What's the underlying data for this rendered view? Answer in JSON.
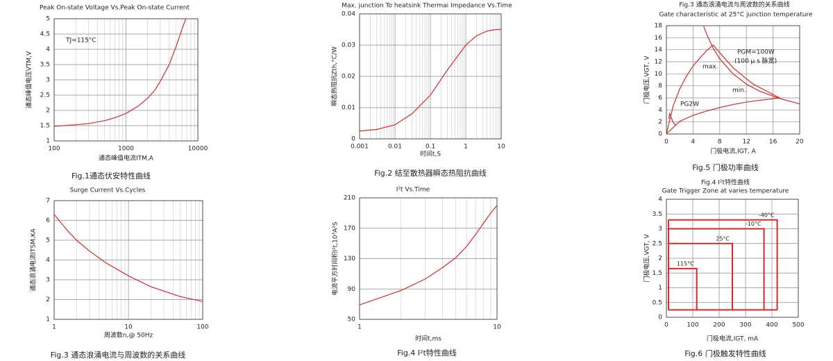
{
  "chart_data": [
    {
      "type": "line",
      "title": "Peak On-state Voltage Vs.Peak On-state Current",
      "caption": "Fig.1通态伏安特性曲线",
      "xlabel": "通态峰值电流ITM,A",
      "ylabel": "通态峰值电压VTM,V",
      "annotations": [
        "TJ=115°C"
      ],
      "xscale": "log",
      "xlim": [
        100,
        10000
      ],
      "xticks": [
        100,
        1000,
        10000
      ],
      "ylim": [
        1,
        5
      ],
      "yticks": [
        1,
        1.5,
        2,
        2.5,
        3,
        3.5,
        4,
        4.5,
        5
      ],
      "grid": true,
      "series": [
        {
          "color": "#d42a2a",
          "x": [
            100,
            200,
            300,
            500,
            700,
            1000,
            1500,
            2000,
            2500,
            3000,
            4000,
            5000,
            6000,
            6800
          ],
          "values": [
            1.48,
            1.53,
            1.57,
            1.66,
            1.76,
            1.9,
            2.15,
            2.4,
            2.65,
            2.95,
            3.5,
            4.1,
            4.65,
            5.0
          ]
        }
      ]
    },
    {
      "type": "line",
      "title": "Max. junction To heatsink Thermai Impedance Vs.Time",
      "caption": "Fig.2 结至散热器瞬态热阻抗曲线",
      "xlabel": "时间t,S",
      "ylabel": "瞬态热阻抗Zth,°C/W",
      "xscale": "log",
      "xlim": [
        0.001,
        10
      ],
      "xticks": [
        0.001,
        0.01,
        0.1,
        1,
        10
      ],
      "ylim": [
        0,
        0.04
      ],
      "yticks": [
        0,
        0.01,
        0.02,
        0.03,
        0.04
      ],
      "grid": true,
      "series": [
        {
          "color": "#d42a2a",
          "x": [
            0.001,
            0.003,
            0.01,
            0.03,
            0.1,
            0.3,
            1,
            2,
            4,
            7,
            10
          ],
          "values": [
            0.0025,
            0.003,
            0.0045,
            0.008,
            0.014,
            0.022,
            0.03,
            0.033,
            0.0345,
            0.035,
            0.035
          ]
        }
      ]
    },
    {
      "type": "line",
      "header": "Fig.3 通态浪涌电流与周波数的关系曲线",
      "title": "Gate characteristic at 25°C junction temperature",
      "caption": "Fig.5 门极功率曲线",
      "xlabel": "门极电流,IGT, A",
      "ylabel": "门极电压,VGT, V",
      "annotations": [
        "PGM=100W",
        "(100 μ s 脉宽)",
        "max.",
        "min.",
        "PG2W"
      ],
      "xlim": [
        0,
        20
      ],
      "xticks": [
        0,
        4,
        8,
        12,
        16,
        20
      ],
      "ylim": [
        0,
        18
      ],
      "yticks": [
        0,
        2,
        4,
        6,
        8,
        10,
        12,
        14,
        16,
        18
      ],
      "grid": true,
      "series": [
        {
          "color": "#d42a2a",
          "x": [
            0,
            1,
            2,
            3,
            4,
            5,
            6,
            7
          ],
          "values": [
            0,
            4.6,
            7.5,
            9.6,
            11.3,
            12.6,
            13.8,
            14.8
          ]
        },
        {
          "color": "#d42a2a",
          "x": [
            0,
            2,
            4,
            6,
            8,
            10,
            12,
            14,
            16,
            17
          ],
          "values": [
            0,
            2.1,
            3.1,
            3.8,
            4.4,
            4.9,
            5.3,
            5.6,
            5.85,
            6
          ]
        },
        {
          "color": "#d42a2a",
          "x": [
            5.6,
            6,
            7,
            8,
            10,
            12,
            14,
            17,
            20
          ],
          "values": [
            17.9,
            16.7,
            14.3,
            12.5,
            10,
            8.3,
            7.1,
            5.9,
            5
          ]
        },
        {
          "color": "#d42a2a",
          "x": [
            7,
            10,
            13,
            17
          ],
          "values": [
            14.8,
            11,
            8.3,
            6
          ]
        },
        {
          "color": "#d42a2a",
          "x": [
            0.35,
            0.5,
            0.7,
            1.0,
            1.4
          ],
          "values": [
            2.5,
            3.4,
            2.8,
            2.0,
            1.4
          ]
        }
      ]
    },
    {
      "type": "line",
      "title": "Surge Current Vs.Cycles",
      "caption": "Fig.3 通态浪涌电流与周波数的关系曲线",
      "xlabel": "周波数n,@ 50Hz",
      "ylabel": "通态浪涌电流ITSM,KA",
      "xscale": "log",
      "xlim": [
        1,
        100
      ],
      "xticks": [
        1,
        10,
        100
      ],
      "ylim": [
        1,
        7
      ],
      "yticks": [
        1,
        2,
        3,
        4,
        5,
        6,
        7
      ],
      "grid": true,
      "series": [
        {
          "color": "#d42a2a",
          "x": [
            1,
            1.5,
            2,
            3,
            5,
            10,
            20,
            50,
            100
          ],
          "values": [
            6.3,
            5.5,
            5.0,
            4.45,
            3.85,
            3.2,
            2.65,
            2.15,
            1.9
          ]
        }
      ]
    },
    {
      "type": "line",
      "title": "I²t  Vs.Time",
      "caption": "Fig.4 I²t特性曲线",
      "xlabel": "时间t,ms",
      "ylabel": "电流平方时间积I²t,10³A²S",
      "xscale": "log",
      "xlim": [
        1,
        10
      ],
      "xticks": [
        1,
        10
      ],
      "ylim": [
        50,
        210
      ],
      "yticks": [
        50,
        90,
        130,
        170,
        210
      ],
      "grid": true,
      "series": [
        {
          "color": "#d42a2a",
          "x": [
            1,
            2,
            3,
            4,
            5,
            6,
            7,
            8,
            9,
            10
          ],
          "values": [
            69,
            88,
            103,
            118,
            131,
            146,
            162,
            177,
            190,
            200
          ]
        }
      ]
    },
    {
      "type": "zone",
      "header": "Fig.4 I²t特性曲线",
      "title": "Gate Trigger Zone at varies temperature",
      "caption": "Fig.6 门极触发特性曲线",
      "xlabel": "门极电流,IGT, mA",
      "ylabel": "门极电压,VGT, V",
      "xlim": [
        0,
        500
      ],
      "xticks": [
        0,
        100,
        200,
        300,
        400,
        500
      ],
      "ylim": [
        0,
        4
      ],
      "yticks": [
        0,
        0.5,
        1,
        1.5,
        2,
        2.5,
        3,
        3.5,
        4
      ],
      "grid": true,
      "color": "#d42a2a",
      "origin": [
        8,
        0.25
      ],
      "zones": {
        "labels": [
          "115°C",
          "25°C",
          "-10°C",
          "-40°C"
        ],
        "x": [
          115,
          250,
          370,
          420
        ],
        "y": [
          1.65,
          2.5,
          3.0,
          3.3
        ]
      }
    }
  ]
}
